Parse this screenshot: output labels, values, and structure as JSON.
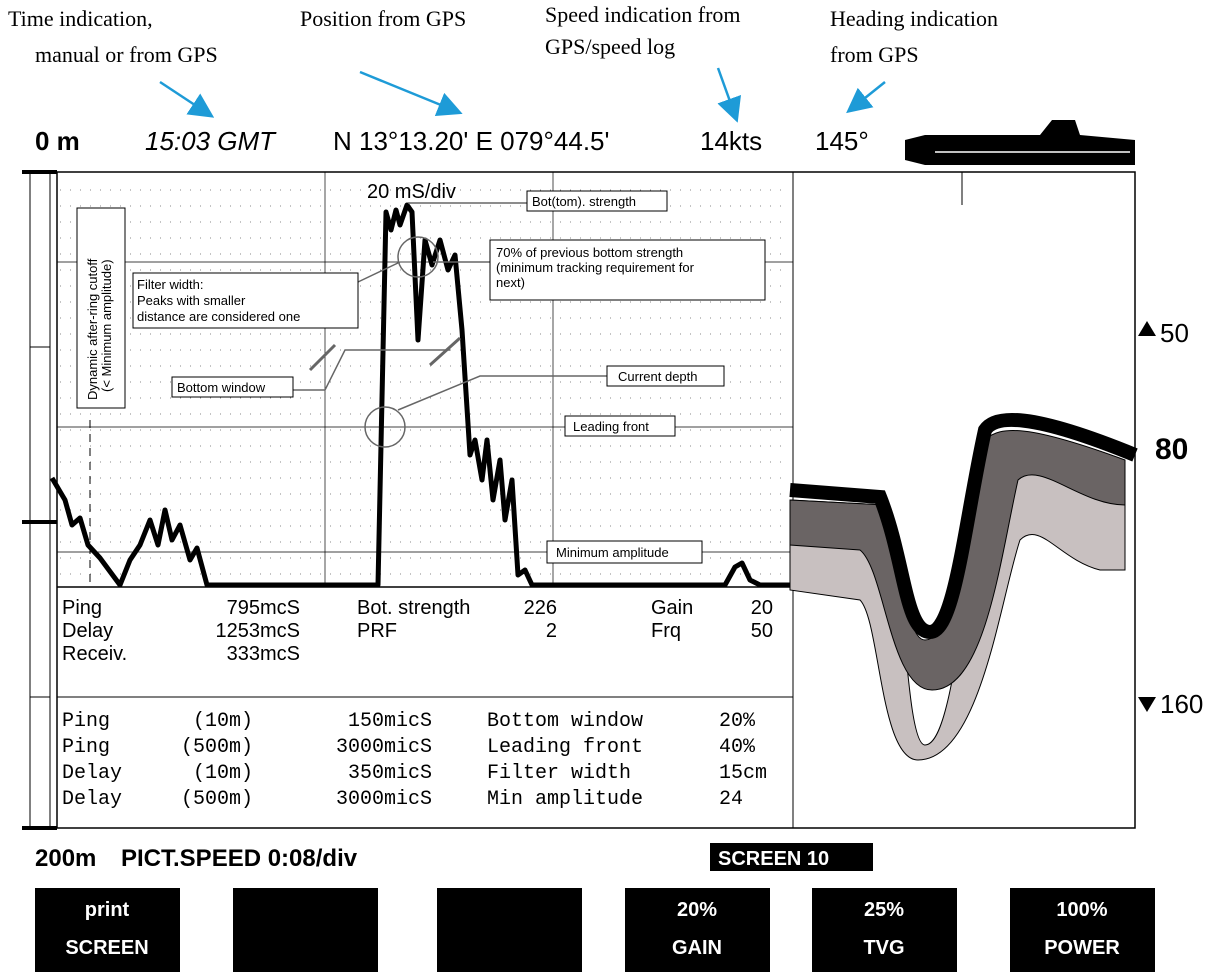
{
  "annotations": {
    "time": [
      "Time indication,",
      "manual or from GPS"
    ],
    "position": [
      "Position from GPS"
    ],
    "speed": [
      "Speed indication from",
      "GPS/speed log"
    ],
    "heading": [
      "Heading indication",
      "from GPS"
    ]
  },
  "status": {
    "depth_top": "0 m",
    "time": "15:03 GMT",
    "position": "N 13°13.20' E 079°44.5'",
    "speed": "14kts",
    "heading": "145°"
  },
  "scope": {
    "scale": "20 mS/div",
    "bottom_strength": "Bot(tom). strength",
    "tracking": [
      "70% of previous bottom strength",
      "(minimum tracking requirement for",
      "next)"
    ],
    "filter_width": [
      "Filter width:",
      "Peaks with smaller",
      "distance are considered one"
    ],
    "bottom_window": "Bottom window",
    "current_depth": "Current depth",
    "leading_front": "Leading front",
    "minimum_amplitude": "Minimum amplitude",
    "after_ring": [
      "Dynamic after-ring cutoff",
      "(< Minimum amplitude)"
    ]
  },
  "readouts": [
    [
      "Ping",
      "795mcS",
      "Bot. strength",
      "226",
      "Gain",
      "20"
    ],
    [
      "Delay",
      "1253mcS",
      "PRF",
      "2",
      "Frq",
      "50"
    ],
    [
      "Receiv.",
      "333mcS"
    ]
  ],
  "settings": [
    [
      "Ping",
      "(10m)",
      "150micS",
      "Bottom window",
      "20%"
    ],
    [
      "Ping",
      "(500m)",
      "3000micS",
      "Leading front",
      "40%"
    ],
    [
      "Delay",
      "(10m)",
      "350micS",
      "Filter width",
      "15cm"
    ],
    [
      "Delay",
      "(500m)",
      "3000micS",
      "Min amplitude",
      "24"
    ]
  ],
  "echogram": {
    "upper": "50",
    "current": "80",
    "lower": "160"
  },
  "footer": {
    "depth_bottom": "200m",
    "picture_speed": "PICT.SPEED 0:08/div",
    "screen": "SCREEN 10"
  },
  "buttons": [
    [
      "print",
      "SCREEN"
    ],
    [
      "20%",
      "GAIN"
    ],
    [
      "25%",
      "TVG"
    ],
    [
      "100%",
      "POWER"
    ]
  ]
}
